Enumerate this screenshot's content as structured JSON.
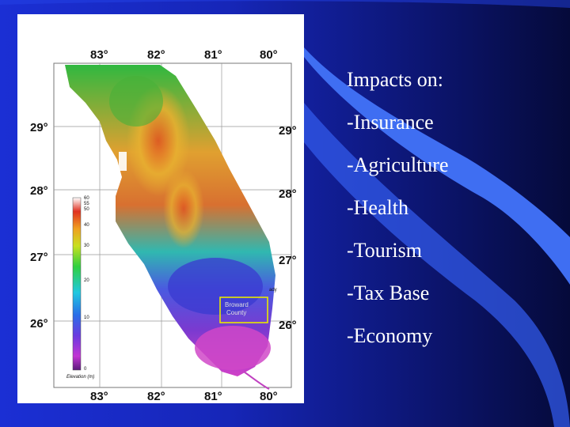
{
  "map": {
    "top_lon_labels": [
      "83°",
      "82°",
      "81°",
      "80°"
    ],
    "bottom_lon_labels": [
      "83°",
      "82°",
      "81°",
      "80°"
    ],
    "left_lat_labels": [
      "29°",
      "28°",
      "27°",
      "26°"
    ],
    "right_lat_labels": [
      "29°",
      "28°",
      "27°",
      "26°"
    ],
    "legend": {
      "ticks": [
        "60",
        "55",
        "50",
        "40",
        "30",
        "20",
        "10",
        "0"
      ],
      "title": "Elevation (m)"
    },
    "box_label_lines": [
      "Broward",
      "County"
    ],
    "side_text": "ady"
  },
  "impacts": {
    "heading": "Impacts on:",
    "items": [
      "-Insurance",
      "-Agriculture",
      "-Health",
      "-Tourism",
      "-Tax Base",
      "-Economy"
    ]
  },
  "colors": {
    "background_left": "#1b2fd4",
    "background_right": "#050a3a",
    "swoosh": "#3f6ef2",
    "text": "#ffffff",
    "county_box": "#e8e800"
  }
}
